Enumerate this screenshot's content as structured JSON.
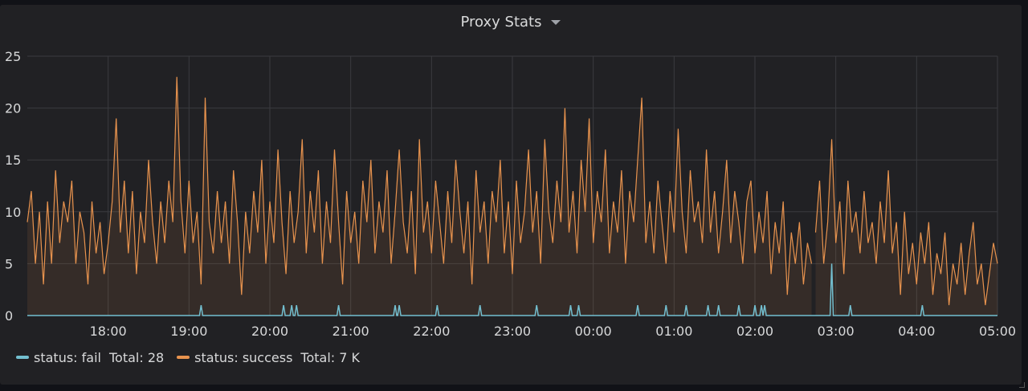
{
  "panel": {
    "title": "Proxy Stats",
    "caret_icon": "chevron-down-icon"
  },
  "legend": [
    {
      "label": "status: fail",
      "total": "Total: 28",
      "color": "#73bfd0"
    },
    {
      "label": "status: success",
      "total": "Total: 7 K",
      "color": "#e8934e"
    }
  ],
  "chart_data": {
    "type": "line",
    "y_ticks": [
      "0",
      "5",
      "10",
      "15",
      "20",
      "25"
    ],
    "ylim": [
      0,
      25
    ],
    "x_ticks": [
      "18:00",
      "19:00",
      "20:00",
      "21:00",
      "22:00",
      "23:00",
      "00:00",
      "01:00",
      "02:00",
      "03:00",
      "04:00",
      "05:00"
    ],
    "x_range_hours": [
      17.0,
      29.0
    ],
    "grid": true,
    "legend_position": "bottom-left",
    "series": [
      {
        "name": "status: fail",
        "color": "#73bfd0",
        "total": 28,
        "spikes": [
          {
            "t": 19.15,
            "v": 1
          },
          {
            "t": 20.17,
            "v": 1
          },
          {
            "t": 20.27,
            "v": 1
          },
          {
            "t": 20.33,
            "v": 1
          },
          {
            "t": 20.85,
            "v": 1
          },
          {
            "t": 21.55,
            "v": 1
          },
          {
            "t": 21.6,
            "v": 1
          },
          {
            "t": 22.07,
            "v": 1
          },
          {
            "t": 22.6,
            "v": 1
          },
          {
            "t": 23.3,
            "v": 1
          },
          {
            "t": 23.72,
            "v": 1
          },
          {
            "t": 23.82,
            "v": 1
          },
          {
            "t": 24.55,
            "v": 1
          },
          {
            "t": 24.9,
            "v": 1
          },
          {
            "t": 25.15,
            "v": 1
          },
          {
            "t": 25.42,
            "v": 1
          },
          {
            "t": 25.55,
            "v": 1
          },
          {
            "t": 25.8,
            "v": 1
          },
          {
            "t": 26.0,
            "v": 1
          },
          {
            "t": 26.08,
            "v": 1
          },
          {
            "t": 26.12,
            "v": 1
          },
          {
            "t": 26.95,
            "v": 5
          },
          {
            "t": 27.18,
            "v": 1
          },
          {
            "t": 28.07,
            "v": 1
          }
        ]
      },
      {
        "name": "status: success",
        "color": "#e8934e",
        "total": "7 K",
        "gap": [
          26.7,
          26.75
        ],
        "points": [
          [
            17.0,
            9
          ],
          [
            17.05,
            12
          ],
          [
            17.1,
            5
          ],
          [
            17.15,
            10
          ],
          [
            17.2,
            3
          ],
          [
            17.25,
            11
          ],
          [
            17.3,
            5
          ],
          [
            17.35,
            14
          ],
          [
            17.4,
            7
          ],
          [
            17.45,
            11
          ],
          [
            17.5,
            9
          ],
          [
            17.55,
            13
          ],
          [
            17.6,
            5
          ],
          [
            17.65,
            10
          ],
          [
            17.7,
            8
          ],
          [
            17.75,
            3
          ],
          [
            17.8,
            11
          ],
          [
            17.85,
            6
          ],
          [
            17.9,
            9
          ],
          [
            17.95,
            4
          ],
          [
            18.0,
            7
          ],
          [
            18.05,
            11
          ],
          [
            18.1,
            19
          ],
          [
            18.15,
            8
          ],
          [
            18.2,
            13
          ],
          [
            18.25,
            6
          ],
          [
            18.3,
            12
          ],
          [
            18.35,
            4
          ],
          [
            18.4,
            10
          ],
          [
            18.45,
            7
          ],
          [
            18.5,
            15
          ],
          [
            18.55,
            9
          ],
          [
            18.6,
            5
          ],
          [
            18.65,
            11
          ],
          [
            18.7,
            7
          ],
          [
            18.75,
            13
          ],
          [
            18.8,
            9
          ],
          [
            18.85,
            23
          ],
          [
            18.9,
            11
          ],
          [
            18.95,
            6
          ],
          [
            19.0,
            13
          ],
          [
            19.05,
            7
          ],
          [
            19.1,
            10
          ],
          [
            19.15,
            3
          ],
          [
            19.2,
            21
          ],
          [
            19.25,
            9
          ],
          [
            19.3,
            6
          ],
          [
            19.35,
            12
          ],
          [
            19.4,
            7
          ],
          [
            19.45,
            11
          ],
          [
            19.5,
            5
          ],
          [
            19.55,
            14
          ],
          [
            19.6,
            9
          ],
          [
            19.65,
            2
          ],
          [
            19.7,
            10
          ],
          [
            19.75,
            6
          ],
          [
            19.8,
            12
          ],
          [
            19.85,
            8
          ],
          [
            19.9,
            15
          ],
          [
            19.95,
            5
          ],
          [
            20.0,
            11
          ],
          [
            20.05,
            7
          ],
          [
            20.1,
            16
          ],
          [
            20.15,
            9
          ],
          [
            20.2,
            4
          ],
          [
            20.25,
            12
          ],
          [
            20.3,
            7
          ],
          [
            20.35,
            10
          ],
          [
            20.4,
            17
          ],
          [
            20.45,
            6
          ],
          [
            20.5,
            12
          ],
          [
            20.55,
            8
          ],
          [
            20.6,
            14
          ],
          [
            20.65,
            5
          ],
          [
            20.7,
            11
          ],
          [
            20.75,
            7
          ],
          [
            20.8,
            16
          ],
          [
            20.85,
            9
          ],
          [
            20.9,
            3
          ],
          [
            20.95,
            12
          ],
          [
            21.0,
            7
          ],
          [
            21.05,
            10
          ],
          [
            21.1,
            5
          ],
          [
            21.15,
            13
          ],
          [
            21.2,
            9
          ],
          [
            21.25,
            15
          ],
          [
            21.3,
            6
          ],
          [
            21.35,
            11
          ],
          [
            21.4,
            8
          ],
          [
            21.45,
            14
          ],
          [
            21.5,
            5
          ],
          [
            21.55,
            10
          ],
          [
            21.6,
            16
          ],
          [
            21.65,
            9
          ],
          [
            21.7,
            6
          ],
          [
            21.75,
            12
          ],
          [
            21.8,
            4
          ],
          [
            21.85,
            17
          ],
          [
            21.9,
            8
          ],
          [
            21.95,
            11
          ],
          [
            22.0,
            6
          ],
          [
            22.05,
            13
          ],
          [
            22.1,
            9
          ],
          [
            22.15,
            5
          ],
          [
            22.2,
            12
          ],
          [
            22.25,
            7
          ],
          [
            22.3,
            15
          ],
          [
            22.35,
            10
          ],
          [
            22.4,
            6
          ],
          [
            22.45,
            11
          ],
          [
            22.5,
            3
          ],
          [
            22.55,
            14
          ],
          [
            22.6,
            8
          ],
          [
            22.65,
            11
          ],
          [
            22.7,
            5
          ],
          [
            22.75,
            12
          ],
          [
            22.8,
            9
          ],
          [
            22.85,
            15
          ],
          [
            22.9,
            6
          ],
          [
            22.95,
            11
          ],
          [
            23.0,
            4
          ],
          [
            23.05,
            13
          ],
          [
            23.1,
            7
          ],
          [
            23.15,
            10
          ],
          [
            23.2,
            16
          ],
          [
            23.25,
            8
          ],
          [
            23.3,
            12
          ],
          [
            23.35,
            5
          ],
          [
            23.4,
            17
          ],
          [
            23.45,
            10
          ],
          [
            23.5,
            7
          ],
          [
            23.55,
            13
          ],
          [
            23.6,
            9
          ],
          [
            23.65,
            20
          ],
          [
            23.7,
            8
          ],
          [
            23.75,
            12
          ],
          [
            23.8,
            6
          ],
          [
            23.85,
            15
          ],
          [
            23.9,
            10
          ],
          [
            23.95,
            19
          ],
          [
            24.0,
            7
          ],
          [
            24.05,
            12
          ],
          [
            24.1,
            9
          ],
          [
            24.15,
            16
          ],
          [
            24.2,
            6
          ],
          [
            24.25,
            11
          ],
          [
            24.3,
            8
          ],
          [
            24.35,
            14
          ],
          [
            24.4,
            5
          ],
          [
            24.45,
            12
          ],
          [
            24.5,
            9
          ],
          [
            24.55,
            15
          ],
          [
            24.6,
            21
          ],
          [
            24.65,
            7
          ],
          [
            24.7,
            11
          ],
          [
            24.75,
            6
          ],
          [
            24.8,
            13
          ],
          [
            24.85,
            9
          ],
          [
            24.9,
            5
          ],
          [
            24.95,
            12
          ],
          [
            25.0,
            8
          ],
          [
            25.05,
            18
          ],
          [
            25.1,
            10
          ],
          [
            25.15,
            6
          ],
          [
            25.2,
            14
          ],
          [
            25.25,
            9
          ],
          [
            25.3,
            11
          ],
          [
            25.35,
            7
          ],
          [
            25.4,
            16
          ],
          [
            25.45,
            8
          ],
          [
            25.5,
            12
          ],
          [
            25.55,
            6
          ],
          [
            25.6,
            10
          ],
          [
            25.65,
            15
          ],
          [
            25.7,
            7
          ],
          [
            25.75,
            12
          ],
          [
            25.8,
            9
          ],
          [
            25.85,
            5
          ],
          [
            25.9,
            11
          ],
          [
            25.95,
            13
          ],
          [
            26.0,
            6
          ],
          [
            26.05,
            10
          ],
          [
            26.1,
            7
          ],
          [
            26.15,
            12
          ],
          [
            26.2,
            4
          ],
          [
            26.25,
            9
          ],
          [
            26.3,
            6
          ],
          [
            26.35,
            11
          ],
          [
            26.4,
            2
          ],
          [
            26.45,
            8
          ],
          [
            26.5,
            5
          ],
          [
            26.55,
            9
          ],
          [
            26.6,
            3
          ],
          [
            26.65,
            7
          ],
          [
            26.7,
            5
          ],
          [
            26.75,
            8
          ],
          [
            26.8,
            13
          ],
          [
            26.85,
            5
          ],
          [
            26.9,
            9
          ],
          [
            26.95,
            17
          ],
          [
            27.0,
            7
          ],
          [
            27.05,
            11
          ],
          [
            27.1,
            4
          ],
          [
            27.15,
            13
          ],
          [
            27.2,
            8
          ],
          [
            27.25,
            10
          ],
          [
            27.3,
            6
          ],
          [
            27.35,
            12
          ],
          [
            27.4,
            7
          ],
          [
            27.45,
            9
          ],
          [
            27.5,
            5
          ],
          [
            27.55,
            11
          ],
          [
            27.6,
            7
          ],
          [
            27.65,
            14
          ],
          [
            27.7,
            6
          ],
          [
            27.75,
            9
          ],
          [
            27.8,
            2
          ],
          [
            27.85,
            10
          ],
          [
            27.9,
            4
          ],
          [
            27.95,
            7
          ],
          [
            28.0,
            3
          ],
          [
            28.05,
            8
          ],
          [
            28.1,
            5
          ],
          [
            28.15,
            9
          ],
          [
            28.2,
            2
          ],
          [
            28.25,
            6
          ],
          [
            28.3,
            4
          ],
          [
            28.35,
            8
          ],
          [
            28.4,
            1
          ],
          [
            28.45,
            5
          ],
          [
            28.5,
            3
          ],
          [
            28.55,
            7
          ],
          [
            28.6,
            2
          ],
          [
            28.65,
            6
          ],
          [
            28.7,
            9
          ],
          [
            28.75,
            3
          ],
          [
            28.8,
            5
          ],
          [
            28.85,
            1
          ],
          [
            28.9,
            4
          ],
          [
            28.95,
            7
          ],
          [
            29.0,
            5
          ]
        ]
      }
    ]
  }
}
